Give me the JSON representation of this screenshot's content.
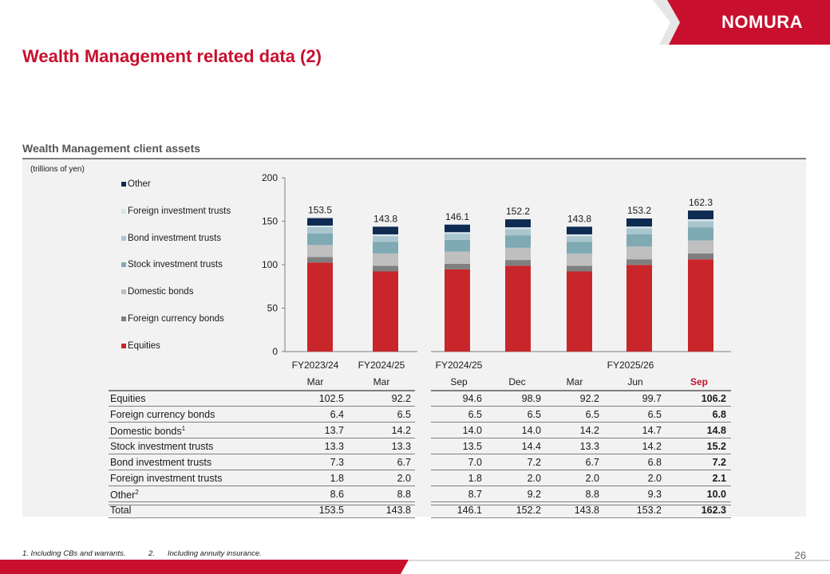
{
  "brand": {
    "logo_text": "NOMURA",
    "accent": "#c8102e"
  },
  "page": {
    "title": "Wealth Management related data (2)",
    "number": "26"
  },
  "section": {
    "title": "Wealth Management client assets",
    "unit": "(trillions of yen)"
  },
  "chart_data": {
    "type": "bar",
    "stacked": true,
    "ylim": [
      0,
      200
    ],
    "yticks": [
      0,
      50,
      100,
      150,
      200
    ],
    "groups": [
      {
        "label": "FY2023/24",
        "columns": [
          0
        ]
      },
      {
        "label": "FY2024/25",
        "columns": [
          1
        ]
      },
      {
        "label": "FY2024/25",
        "columns": [
          2
        ]
      },
      {
        "label": "FY2025/26",
        "columns": [
          3,
          4,
          5,
          6
        ]
      }
    ],
    "categories": [
      "Mar",
      "Mar",
      "Sep",
      "Dec",
      "Mar",
      "Jun",
      "Sep"
    ],
    "highlight_index": 6,
    "series": [
      {
        "name": "Equities",
        "color": "#c8262b",
        "values": [
          102.5,
          92.2,
          94.6,
          98.9,
          92.2,
          99.7,
          106.2
        ]
      },
      {
        "name": "Foreign currency bonds",
        "color": "#7f7f7f",
        "values": [
          6.4,
          6.5,
          6.5,
          6.5,
          6.5,
          6.5,
          6.8
        ]
      },
      {
        "name": "Domestic bonds",
        "color": "#bfbfbf",
        "values": [
          13.7,
          14.2,
          14.0,
          14.0,
          14.2,
          14.7,
          14.8
        ]
      },
      {
        "name": "Stock investment trusts",
        "color": "#7fa9b3",
        "values": [
          13.3,
          13.3,
          13.5,
          14.4,
          13.3,
          14.2,
          15.2
        ]
      },
      {
        "name": "Bond investment trusts",
        "color": "#a9c6cf",
        "values": [
          7.3,
          6.7,
          7.0,
          7.2,
          6.7,
          6.8,
          7.2
        ]
      },
      {
        "name": "Foreign investment trusts",
        "color": "#d6e5ea",
        "values": [
          1.8,
          2.0,
          1.8,
          2.0,
          2.0,
          2.0,
          2.1
        ]
      },
      {
        "name": "Other",
        "color": "#0e2b52",
        "values": [
          8.6,
          8.8,
          8.7,
          9.2,
          8.8,
          9.3,
          10.0
        ]
      }
    ],
    "totals": [
      153.5,
      143.8,
      146.1,
      152.2,
      143.8,
      153.2,
      162.3
    ]
  },
  "table": {
    "rows": [
      {
        "label": "Equities",
        "sup": "",
        "values": [
          "102.5",
          "92.2",
          "94.6",
          "98.9",
          "92.2",
          "99.7",
          "106.2"
        ]
      },
      {
        "label": "Foreign currency bonds",
        "sup": "",
        "values": [
          "6.4",
          "6.5",
          "6.5",
          "6.5",
          "6.5",
          "6.5",
          "6.8"
        ]
      },
      {
        "label": "Domestic bonds",
        "sup": "1",
        "values": [
          "13.7",
          "14.2",
          "14.0",
          "14.0",
          "14.2",
          "14.7",
          "14.8"
        ]
      },
      {
        "label": "Stock investment trusts",
        "sup": "",
        "values": [
          "13.3",
          "13.3",
          "13.5",
          "14.4",
          "13.3",
          "14.2",
          "15.2"
        ]
      },
      {
        "label": "Bond investment trusts",
        "sup": "",
        "values": [
          "7.3",
          "6.7",
          "7.0",
          "7.2",
          "6.7",
          "6.8",
          "7.2"
        ]
      },
      {
        "label": "Foreign investment trusts",
        "sup": "",
        "values": [
          "1.8",
          "2.0",
          "1.8",
          "2.0",
          "2.0",
          "2.0",
          "2.1"
        ]
      },
      {
        "label": "Other",
        "sup": "2",
        "values": [
          "8.6",
          "8.8",
          "8.7",
          "9.2",
          "8.8",
          "9.3",
          "10.0"
        ]
      },
      {
        "label": "Total",
        "sup": "",
        "values": [
          "153.5",
          "143.8",
          "146.1",
          "152.2",
          "143.8",
          "153.2",
          "162.3"
        ]
      }
    ]
  },
  "footnotes": {
    "one": "1. Including CBs and warrants.",
    "two_num": "2.",
    "two_text": "Including annuity insurance."
  }
}
